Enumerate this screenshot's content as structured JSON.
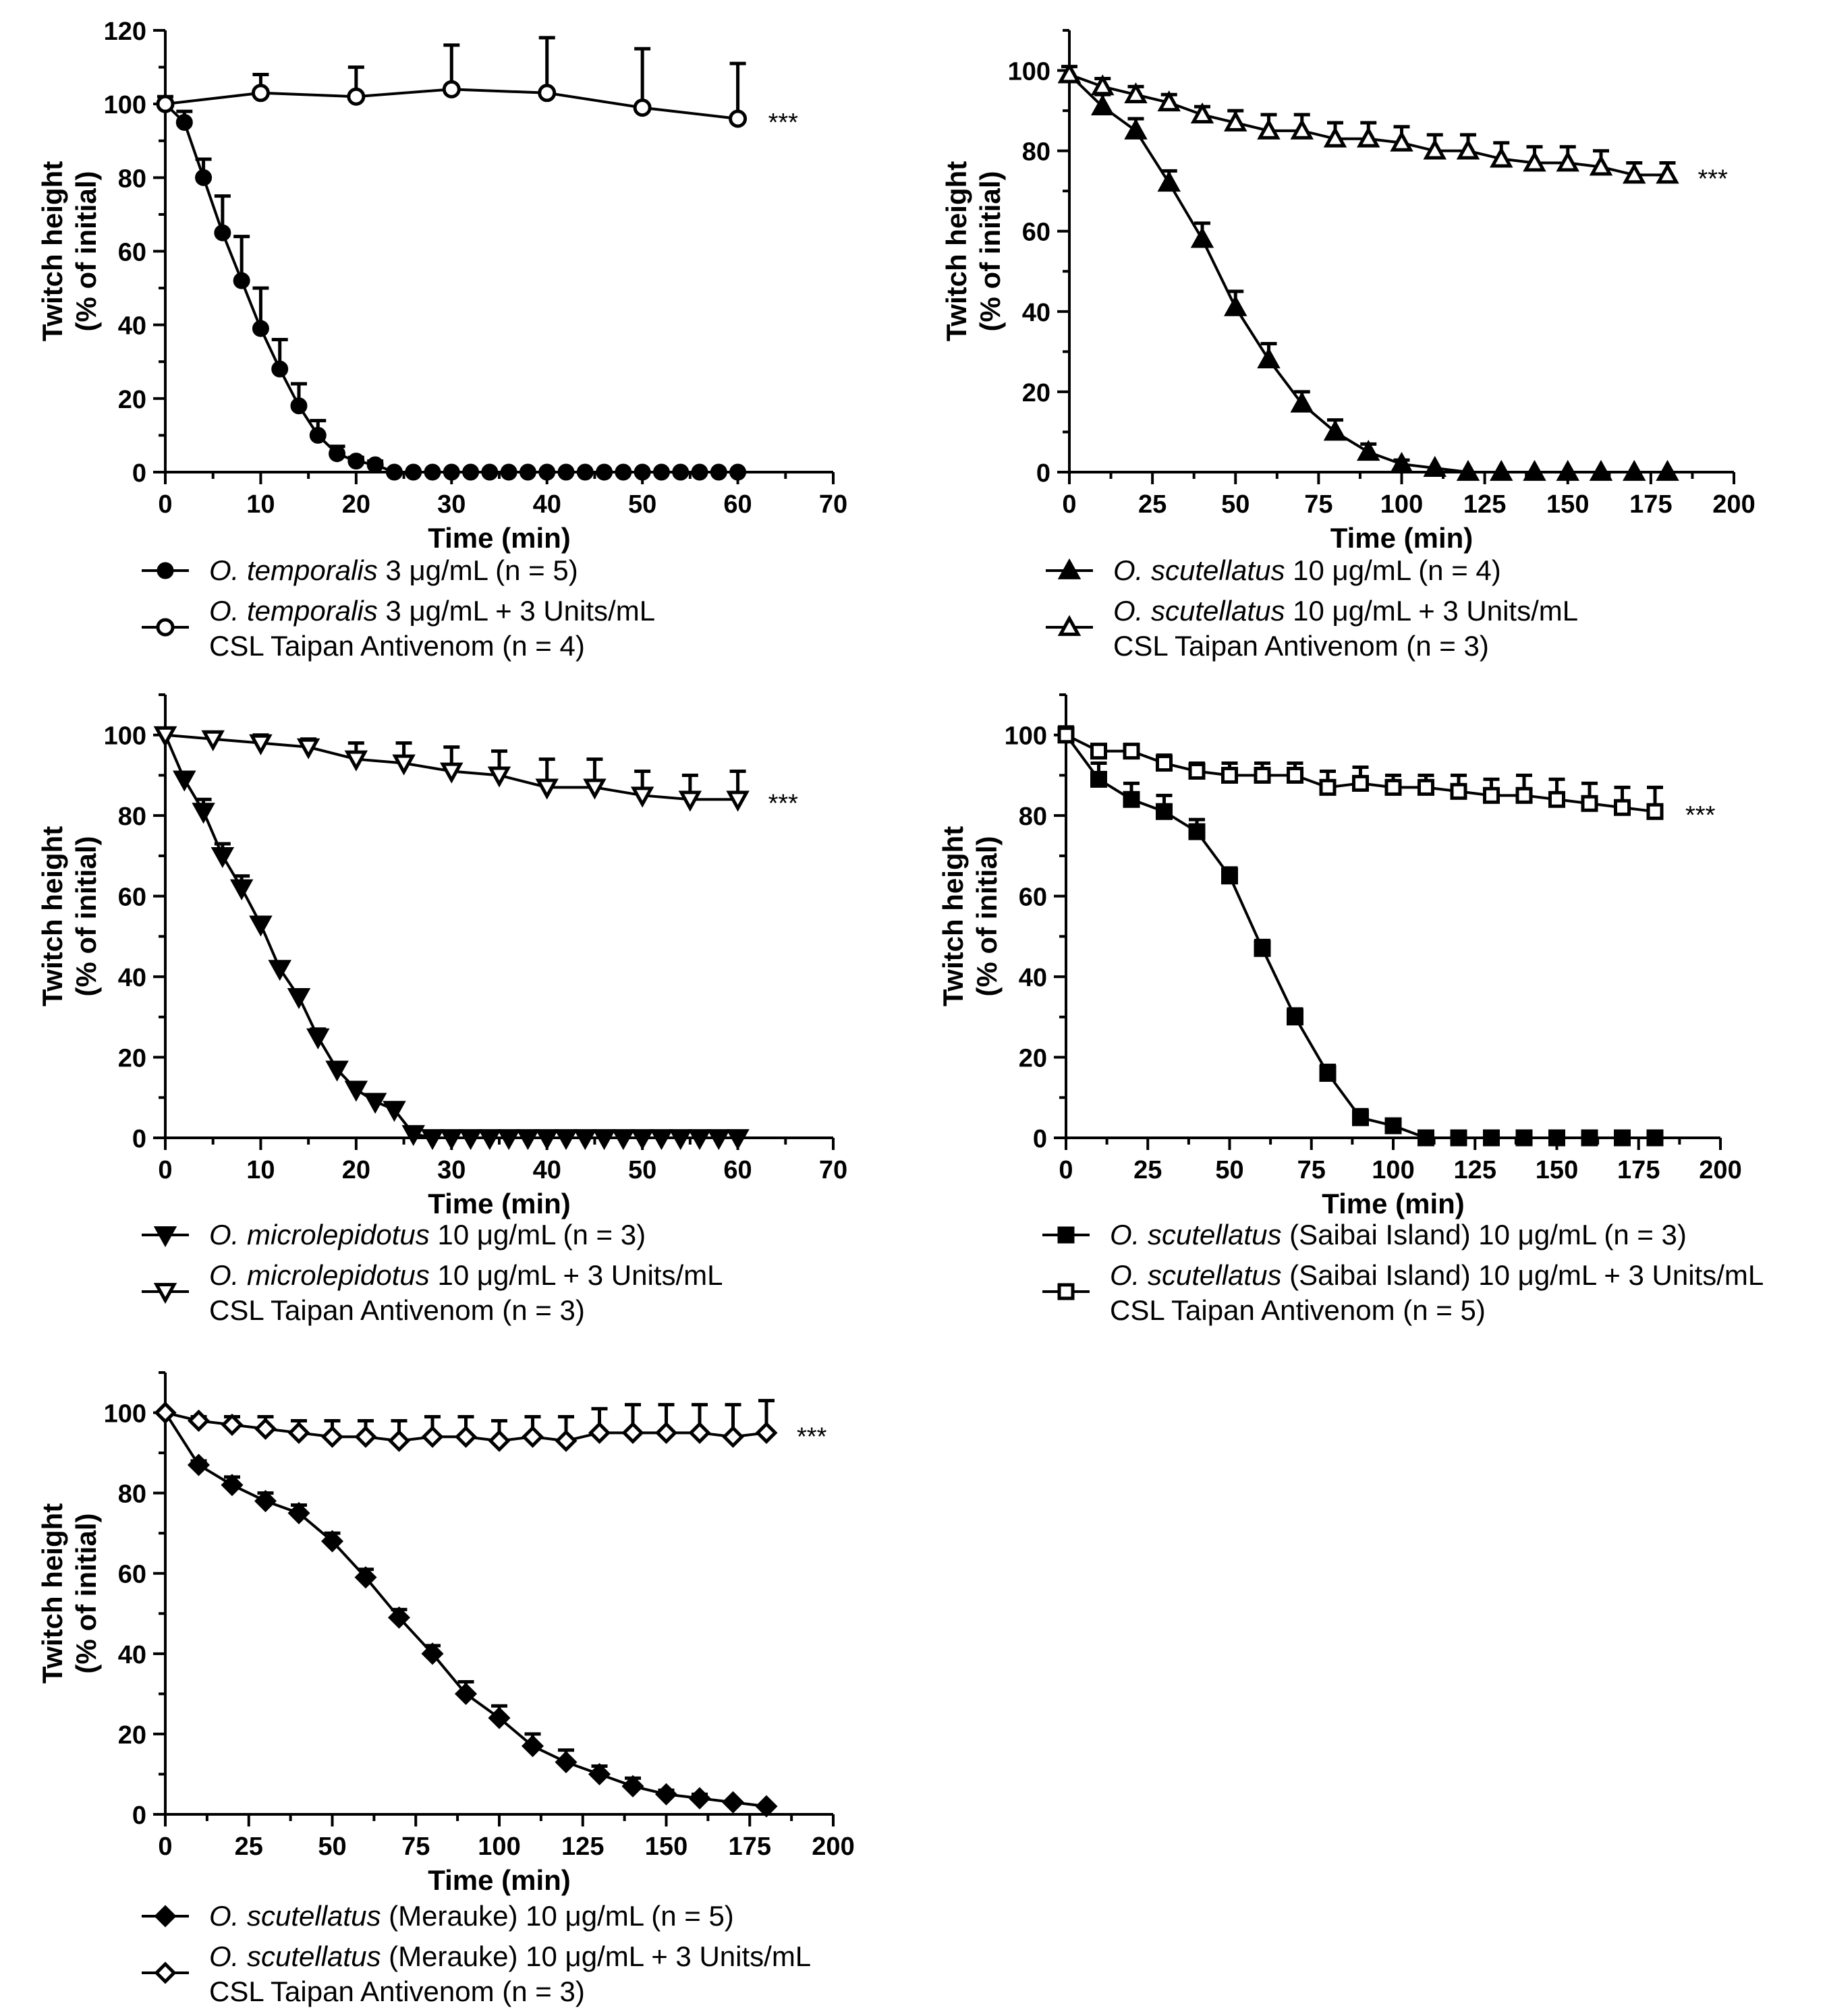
{
  "chart_data": [
    {
      "id": "p1",
      "type": "line",
      "xlabel": "Time (min)",
      "ylabel": [
        "Twitch height",
        "(% of initial)"
      ],
      "xlim": [
        0,
        70
      ],
      "ylim": [
        0,
        120
      ],
      "xticks": [
        0,
        10,
        20,
        30,
        40,
        50,
        60,
        70
      ],
      "yticks": [
        0,
        20,
        40,
        60,
        80,
        100,
        120
      ],
      "annotation": "***",
      "annotation_series": 1,
      "series": [
        {
          "marker": "circle-filled",
          "x": [
            0,
            2,
            4,
            6,
            8,
            10,
            12,
            14,
            16,
            18,
            20,
            22,
            24,
            26,
            28,
            30,
            32,
            34,
            36,
            38,
            40,
            42,
            44,
            46,
            48,
            50,
            52,
            54,
            56,
            58,
            60
          ],
          "y": [
            100,
            95,
            80,
            65,
            52,
            39,
            28,
            18,
            10,
            5,
            3,
            2,
            0,
            0,
            0,
            0,
            0,
            0,
            0,
            0,
            0,
            0,
            0,
            0,
            0,
            0,
            0,
            0,
            0,
            0,
            0
          ],
          "err": [
            2,
            3,
            5,
            10,
            12,
            11,
            8,
            6,
            4,
            2,
            1,
            1,
            0,
            0,
            0,
            0,
            0,
            0,
            0,
            0,
            0,
            0,
            0,
            0,
            0,
            0,
            0,
            0,
            0,
            0,
            0
          ]
        },
        {
          "marker": "circle-open",
          "x": [
            0,
            10,
            20,
            30,
            40,
            50,
            60
          ],
          "y": [
            100,
            103,
            102,
            104,
            103,
            99,
            96
          ],
          "err": [
            0,
            5,
            8,
            12,
            15,
            16,
            15
          ]
        }
      ],
      "legend": [
        {
          "species": "O. temporalis",
          "text": " 3 μg/mL (n = 5)",
          "line2": ""
        },
        {
          "species": "O. temporalis",
          "text": " 3 μg/mL + 3 Units/mL",
          "line2": "CSL Taipan Antivenom (n = 4)"
        }
      ]
    },
    {
      "id": "p2",
      "type": "line",
      "xlabel": "Time (min)",
      "ylabel": [
        "Twitch height",
        "(% of initial)"
      ],
      "xlim": [
        0,
        200
      ],
      "ylim": [
        0,
        110
      ],
      "xticks": [
        0,
        25,
        50,
        75,
        100,
        125,
        150,
        175,
        200
      ],
      "yticks": [
        0,
        20,
        40,
        60,
        80,
        100
      ],
      "annotation": "***",
      "annotation_series": 1,
      "series": [
        {
          "marker": "triangle-up-filled",
          "x": [
            0,
            10,
            20,
            30,
            40,
            50,
            60,
            70,
            80,
            90,
            100,
            110,
            120,
            130,
            140,
            150,
            160,
            170,
            180
          ],
          "y": [
            99,
            91,
            85,
            72,
            58,
            41,
            28,
            17,
            10,
            5,
            2,
            1,
            0,
            0,
            0,
            0,
            0,
            0,
            0
          ],
          "err": [
            2,
            3,
            3,
            3,
            4,
            4,
            4,
            3,
            3,
            2,
            1,
            0,
            0,
            0,
            0,
            0,
            0,
            0,
            0
          ]
        },
        {
          "marker": "triangle-up-open",
          "x": [
            0,
            10,
            20,
            30,
            40,
            50,
            60,
            70,
            80,
            90,
            100,
            110,
            120,
            130,
            140,
            150,
            160,
            170,
            180
          ],
          "y": [
            99,
            96,
            94,
            92,
            89,
            87,
            85,
            85,
            83,
            83,
            82,
            80,
            80,
            78,
            77,
            77,
            76,
            74,
            74
          ],
          "err": [
            0,
            2,
            2,
            2,
            2,
            3,
            4,
            4,
            4,
            4,
            4,
            4,
            4,
            4,
            4,
            4,
            4,
            3,
            3
          ]
        }
      ],
      "legend": [
        {
          "species": "O. scutellatus",
          "text": " 10 μg/mL (n = 4)",
          "line2": ""
        },
        {
          "species": "O. scutellatus",
          "text": " 10 μg/mL + 3 Units/mL",
          "line2": "CSL Taipan Antivenom (n = 3)"
        }
      ]
    },
    {
      "id": "p3",
      "type": "line",
      "xlabel": "Time (min)",
      "ylabel": [
        "Twitch height",
        "(% of initial)"
      ],
      "xlim": [
        0,
        70
      ],
      "ylim": [
        0,
        110
      ],
      "xticks": [
        0,
        10,
        20,
        30,
        40,
        50,
        60,
        70
      ],
      "yticks": [
        0,
        20,
        40,
        60,
        80,
        100
      ],
      "annotation": "***",
      "annotation_series": 1,
      "series": [
        {
          "marker": "triangle-down-filled",
          "x": [
            0,
            2,
            4,
            6,
            8,
            10,
            12,
            14,
            16,
            18,
            20,
            22,
            24,
            26,
            28,
            30,
            32,
            34,
            36,
            38,
            40,
            42,
            44,
            46,
            48,
            50,
            52,
            54,
            56,
            58,
            60
          ],
          "y": [
            100,
            89,
            81,
            70,
            62,
            53,
            42,
            35,
            25,
            17,
            12,
            9,
            7,
            1,
            0,
            0,
            0,
            0,
            0,
            0,
            0,
            0,
            0,
            0,
            0,
            0,
            0,
            0,
            0,
            0,
            0
          ],
          "err": [
            0,
            1,
            3,
            3,
            3,
            1,
            1,
            1,
            2,
            1,
            1,
            1,
            1,
            1,
            0,
            0,
            0,
            0,
            0,
            0,
            0,
            0,
            0,
            0,
            0,
            0,
            0,
            0,
            0,
            0,
            0
          ]
        },
        {
          "marker": "triangle-down-open",
          "x": [
            0,
            5,
            10,
            15,
            20,
            25,
            30,
            35,
            40,
            45,
            50,
            55,
            60
          ],
          "y": [
            100,
            99,
            98,
            97,
            94,
            93,
            91,
            90,
            87,
            87,
            85,
            84,
            84
          ],
          "err": [
            0,
            1,
            2,
            2,
            4,
            5,
            6,
            6,
            7,
            7,
            6,
            6,
            7
          ]
        }
      ],
      "legend": [
        {
          "species": "O. microlepidotus",
          "text": " 10 μg/mL (n = 3)",
          "line2": ""
        },
        {
          "species": "O. microlepidotus",
          "text": " 10 μg/mL + 3 Units/mL",
          "line2": "CSL Taipan Antivenom (n = 3)"
        }
      ]
    },
    {
      "id": "p4",
      "type": "line",
      "xlabel": "Time (min)",
      "ylabel": [
        "Twitch height",
        "(% of initial)"
      ],
      "xlim": [
        0,
        200
      ],
      "ylim": [
        0,
        110
      ],
      "xticks": [
        0,
        25,
        50,
        75,
        100,
        125,
        150,
        175,
        200
      ],
      "yticks": [
        0,
        20,
        40,
        60,
        80,
        100
      ],
      "annotation": "***",
      "annotation_series": 1,
      "series": [
        {
          "marker": "square-filled",
          "x": [
            0,
            10,
            20,
            30,
            40,
            50,
            60,
            70,
            80,
            90,
            100,
            110,
            120,
            130,
            140,
            150,
            160,
            170,
            180
          ],
          "y": [
            100,
            89,
            84,
            81,
            76,
            65,
            47,
            30,
            16,
            5,
            3,
            0,
            0,
            0,
            0,
            0,
            0,
            0,
            0
          ],
          "err": [
            2,
            4,
            4,
            4,
            3,
            2,
            2,
            2,
            2,
            2,
            1,
            0,
            0,
            0,
            0,
            0,
            0,
            0,
            0
          ]
        },
        {
          "marker": "square-open",
          "x": [
            0,
            10,
            20,
            30,
            40,
            50,
            60,
            70,
            80,
            90,
            100,
            110,
            120,
            130,
            140,
            150,
            160,
            170,
            180
          ],
          "y": [
            100,
            96,
            96,
            93,
            91,
            90,
            90,
            90,
            87,
            88,
            87,
            87,
            86,
            85,
            85,
            84,
            83,
            82,
            81
          ],
          "err": [
            0,
            1,
            1,
            2,
            2,
            3,
            3,
            3,
            4,
            4,
            3,
            3,
            4,
            4,
            5,
            5,
            5,
            5,
            6
          ]
        }
      ],
      "legend": [
        {
          "species": "O. scutellatus",
          "text": " (Saibai Island) 10 μg/mL (n = 3)",
          "line2": ""
        },
        {
          "species": "O. scutellatus",
          "text": " (Saibai Island) 10 μg/mL + 3 Units/mL",
          "line2": "CSL Taipan Antivenom (n = 5)"
        }
      ]
    },
    {
      "id": "p5",
      "type": "line",
      "xlabel": "Time (min)",
      "ylabel": [
        "Twitch height",
        "(% of initial)"
      ],
      "xlim": [
        0,
        200
      ],
      "ylim": [
        0,
        110
      ],
      "xticks": [
        0,
        25,
        50,
        75,
        100,
        125,
        150,
        175,
        200
      ],
      "yticks": [
        0,
        20,
        40,
        60,
        80,
        100
      ],
      "annotation": "***",
      "annotation_series": 1,
      "series": [
        {
          "marker": "diamond-filled",
          "x": [
            0,
            10,
            20,
            30,
            40,
            50,
            60,
            70,
            80,
            90,
            100,
            110,
            120,
            130,
            140,
            150,
            160,
            170,
            180
          ],
          "y": [
            100,
            87,
            82,
            78,
            75,
            68,
            59,
            49,
            40,
            30,
            24,
            17,
            13,
            10,
            7,
            5,
            4,
            3,
            2
          ],
          "err": [
            0,
            1,
            2,
            2,
            2,
            2,
            2,
            2,
            2,
            3,
            3,
            3,
            3,
            2,
            2,
            1,
            1,
            0,
            0
          ]
        },
        {
          "marker": "diamond-open",
          "x": [
            0,
            10,
            20,
            30,
            40,
            50,
            60,
            70,
            80,
            90,
            100,
            110,
            120,
            130,
            140,
            150,
            160,
            170,
            180
          ],
          "y": [
            100,
            98,
            97,
            96,
            95,
            94,
            94,
            93,
            94,
            94,
            93,
            94,
            93,
            95,
            95,
            95,
            95,
            94,
            95
          ],
          "err": [
            0,
            1,
            2,
            3,
            3,
            4,
            4,
            5,
            5,
            5,
            5,
            5,
            6,
            6,
            7,
            7,
            7,
            8,
            8
          ]
        }
      ],
      "legend": [
        {
          "species": "O. scutellatus",
          "text": " (Merauke) 10 μg/mL (n = 5)",
          "line2": ""
        },
        {
          "species": "O. scutellatus",
          "text": " (Merauke) 10 μg/mL + 3 Units/mL",
          "line2": "CSL Taipan Antivenom (n = 3)"
        }
      ]
    }
  ]
}
